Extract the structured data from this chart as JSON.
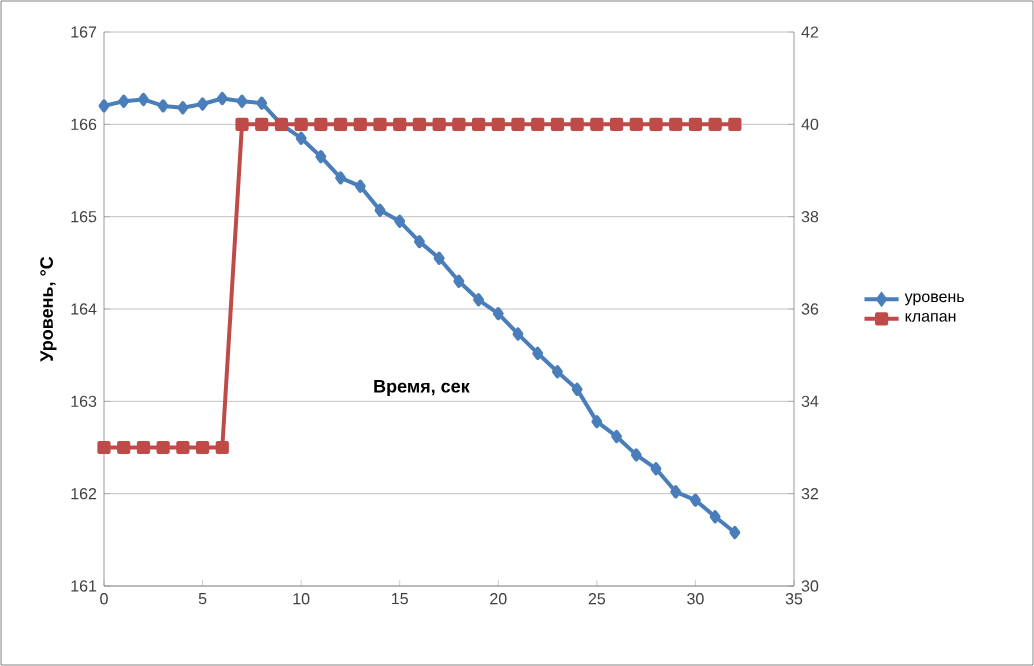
{
  "chart_data": {
    "type": "line",
    "xlabel": "Время, сек",
    "ylabel": "Уровень, °C",
    "x": [
      0,
      1,
      2,
      3,
      4,
      5,
      6,
      7,
      8,
      9,
      10,
      11,
      12,
      13,
      14,
      15,
      16,
      17,
      18,
      19,
      20,
      21,
      22,
      23,
      24,
      25,
      26,
      27,
      28,
      29,
      30,
      31,
      32
    ],
    "series": [
      {
        "name": "уровень",
        "color": "#4a7ebb",
        "marker": "diamond",
        "values": [
          166.2,
          166.25,
          166.27,
          166.2,
          166.18,
          166.22,
          166.28,
          166.25,
          166.23,
          166.0,
          165.85,
          165.65,
          165.42,
          165.33,
          165.07,
          164.95,
          164.73,
          164.55,
          164.3,
          164.1,
          163.95,
          163.73,
          163.52,
          163.32,
          163.13,
          162.78,
          162.62,
          162.42,
          162.27,
          162.02,
          161.93,
          161.75,
          161.58
        ]
      },
      {
        "name": "клапан",
        "color": "#be4b48",
        "marker": "square",
        "axis": "y2",
        "values": [
          33,
          33,
          33,
          33,
          33,
          33,
          33,
          40,
          40,
          40,
          40,
          40,
          40,
          40,
          40,
          40,
          40,
          40,
          40,
          40,
          40,
          40,
          40,
          40,
          40,
          40,
          40,
          40,
          40,
          40,
          40,
          40,
          40
        ]
      }
    ],
    "xlim": [
      0,
      35
    ],
    "xticks": [
      0,
      5,
      10,
      15,
      20,
      25,
      30,
      35
    ],
    "ylim": [
      161,
      167
    ],
    "yticks": [
      161,
      162,
      163,
      164,
      165,
      166,
      167
    ],
    "y2lim": [
      30,
      42
    ],
    "y2ticks": [
      30,
      32,
      34,
      36,
      38,
      40,
      42
    ],
    "grid": "y",
    "legend": "right"
  }
}
